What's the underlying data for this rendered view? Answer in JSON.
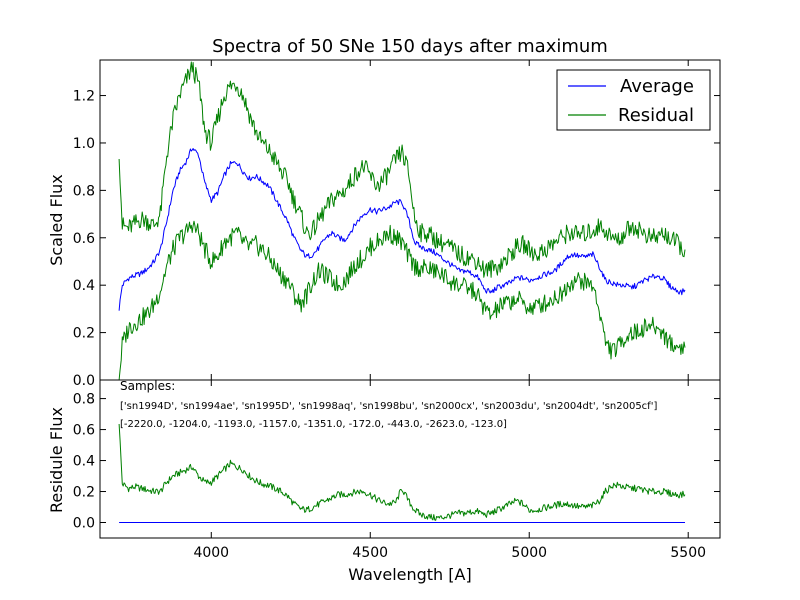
{
  "chart_data": [
    {
      "type": "line",
      "title": "Spectra of 50 SNe 150 days after maximum",
      "xlabel": "",
      "ylabel": "Scaled Flux",
      "xlim": [
        3650,
        5600
      ],
      "ylim": [
        0.0,
        1.35
      ],
      "yticks": [
        "0.0",
        "0.2",
        "0.4",
        "0.6",
        "0.8",
        "1.0",
        "1.2"
      ],
      "legend": {
        "placement": "top-right",
        "entries": [
          "Average",
          "Residual"
        ]
      },
      "series": [
        {
          "name": "Average",
          "color": "#0000ff",
          "x": [
            3710,
            3720,
            3740,
            3760,
            3780,
            3800,
            3820,
            3840,
            3860,
            3880,
            3900,
            3920,
            3940,
            3960,
            3980,
            4000,
            4020,
            4040,
            4060,
            4080,
            4100,
            4120,
            4140,
            4160,
            4180,
            4200,
            4220,
            4240,
            4260,
            4280,
            4300,
            4320,
            4340,
            4360,
            4380,
            4400,
            4420,
            4440,
            4460,
            4480,
            4500,
            4520,
            4540,
            4560,
            4580,
            4600,
            4620,
            4640,
            4660,
            4680,
            4700,
            4720,
            4740,
            4760,
            4780,
            4800,
            4820,
            4840,
            4860,
            4880,
            4900,
            4920,
            4940,
            4960,
            4980,
            5000,
            5020,
            5040,
            5060,
            5080,
            5100,
            5120,
            5140,
            5160,
            5180,
            5200,
            5220,
            5240,
            5260,
            5280,
            5300,
            5320,
            5340,
            5360,
            5380,
            5400,
            5420,
            5440,
            5460,
            5480,
            5490
          ],
          "values": [
            0.3,
            0.4,
            0.43,
            0.44,
            0.45,
            0.47,
            0.5,
            0.55,
            0.67,
            0.8,
            0.88,
            0.92,
            0.98,
            0.95,
            0.83,
            0.76,
            0.79,
            0.86,
            0.91,
            0.92,
            0.88,
            0.85,
            0.86,
            0.84,
            0.82,
            0.77,
            0.72,
            0.67,
            0.6,
            0.55,
            0.52,
            0.53,
            0.56,
            0.6,
            0.62,
            0.6,
            0.59,
            0.63,
            0.67,
            0.7,
            0.72,
            0.71,
            0.72,
            0.73,
            0.75,
            0.75,
            0.68,
            0.58,
            0.56,
            0.55,
            0.54,
            0.52,
            0.5,
            0.48,
            0.46,
            0.46,
            0.45,
            0.43,
            0.38,
            0.37,
            0.39,
            0.4,
            0.41,
            0.43,
            0.43,
            0.42,
            0.43,
            0.44,
            0.45,
            0.46,
            0.49,
            0.52,
            0.53,
            0.52,
            0.52,
            0.53,
            0.48,
            0.42,
            0.41,
            0.4,
            0.4,
            0.39,
            0.4,
            0.42,
            0.43,
            0.44,
            0.43,
            0.4,
            0.38,
            0.37,
            0.38
          ]
        },
        {
          "name": "Residual",
          "color": "#008000",
          "x": [
            3710,
            3720,
            3740,
            3760,
            3780,
            3800,
            3820,
            3840,
            3860,
            3880,
            3900,
            3920,
            3940,
            3960,
            3980,
            4000,
            4020,
            4040,
            4060,
            4080,
            4100,
            4120,
            4140,
            4160,
            4180,
            4200,
            4220,
            4240,
            4260,
            4280,
            4300,
            4320,
            4340,
            4360,
            4380,
            4400,
            4420,
            4440,
            4460,
            4480,
            4500,
            4520,
            4540,
            4560,
            4580,
            4600,
            4620,
            4640,
            4660,
            4680,
            4700,
            4720,
            4740,
            4760,
            4780,
            4800,
            4820,
            4840,
            4860,
            4880,
            4900,
            4920,
            4940,
            4960,
            4980,
            5000,
            5020,
            5040,
            5060,
            5080,
            5100,
            5120,
            5140,
            5160,
            5180,
            5200,
            5220,
            5240,
            5260,
            5280,
            5300,
            5320,
            5340,
            5360,
            5380,
            5400,
            5420,
            5440,
            5460,
            5480,
            5490
          ],
          "values": [
            0.97,
            0.65,
            0.64,
            0.66,
            0.68,
            0.67,
            0.65,
            0.7,
            0.95,
            1.1,
            1.2,
            1.26,
            1.32,
            1.25,
            1.05,
            1.0,
            1.1,
            1.2,
            1.24,
            1.25,
            1.2,
            1.12,
            1.05,
            1.0,
            0.97,
            0.93,
            0.88,
            0.84,
            0.76,
            0.7,
            0.62,
            0.63,
            0.68,
            0.72,
            0.76,
            0.78,
            0.8,
            0.84,
            0.88,
            0.9,
            0.86,
            0.82,
            0.84,
            0.88,
            0.93,
            0.96,
            0.88,
            0.68,
            0.62,
            0.62,
            0.6,
            0.58,
            0.57,
            0.55,
            0.53,
            0.52,
            0.51,
            0.5,
            0.46,
            0.47,
            0.48,
            0.5,
            0.53,
            0.56,
            0.57,
            0.55,
            0.53,
            0.54,
            0.56,
            0.58,
            0.6,
            0.62,
            0.62,
            0.61,
            0.62,
            0.63,
            0.65,
            0.63,
            0.6,
            0.59,
            0.62,
            0.65,
            0.64,
            0.62,
            0.6,
            0.6,
            0.62,
            0.6,
            0.58,
            0.56,
            0.54
          ]
        },
        {
          "name": "",
          "color": "#008000",
          "x": [
            3710,
            3720,
            3740,
            3760,
            3780,
            3800,
            3820,
            3840,
            3860,
            3880,
            3900,
            3920,
            3940,
            3960,
            3980,
            4000,
            4020,
            4040,
            4060,
            4080,
            4100,
            4120,
            4140,
            4160,
            4180,
            4200,
            4220,
            4240,
            4260,
            4280,
            4300,
            4320,
            4340,
            4360,
            4380,
            4400,
            4420,
            4440,
            4460,
            4480,
            4500,
            4520,
            4540,
            4560,
            4580,
            4600,
            4620,
            4640,
            4660,
            4680,
            4700,
            4720,
            4740,
            4760,
            4780,
            4800,
            4820,
            4840,
            4860,
            4880,
            4900,
            4920,
            4940,
            4960,
            4980,
            5000,
            5020,
            5040,
            5060,
            5080,
            5100,
            5120,
            5140,
            5160,
            5180,
            5200,
            5220,
            5240,
            5260,
            5280,
            5300,
            5320,
            5340,
            5360,
            5380,
            5400,
            5420,
            5440,
            5460,
            5480,
            5490
          ],
          "values": [
            0.0,
            0.15,
            0.22,
            0.24,
            0.26,
            0.28,
            0.32,
            0.38,
            0.48,
            0.55,
            0.6,
            0.62,
            0.66,
            0.62,
            0.55,
            0.5,
            0.52,
            0.58,
            0.6,
            0.62,
            0.58,
            0.56,
            0.57,
            0.55,
            0.52,
            0.48,
            0.44,
            0.42,
            0.36,
            0.32,
            0.36,
            0.42,
            0.46,
            0.44,
            0.42,
            0.4,
            0.42,
            0.46,
            0.5,
            0.52,
            0.56,
            0.58,
            0.6,
            0.62,
            0.6,
            0.58,
            0.52,
            0.48,
            0.47,
            0.47,
            0.46,
            0.45,
            0.43,
            0.41,
            0.4,
            0.39,
            0.38,
            0.35,
            0.3,
            0.27,
            0.3,
            0.32,
            0.33,
            0.34,
            0.33,
            0.3,
            0.31,
            0.32,
            0.33,
            0.35,
            0.36,
            0.4,
            0.42,
            0.42,
            0.41,
            0.4,
            0.3,
            0.16,
            0.12,
            0.14,
            0.18,
            0.2,
            0.2,
            0.22,
            0.23,
            0.22,
            0.2,
            0.16,
            0.14,
            0.14,
            0.15
          ]
        }
      ]
    },
    {
      "type": "line",
      "title": "",
      "xlabel": "Wavelength [A]",
      "ylabel": "Residule Flux",
      "xlim": [
        3650,
        5600
      ],
      "ylim": [
        -0.1,
        0.92
      ],
      "xticks": [
        "4000",
        "4500",
        "5000",
        "5500"
      ],
      "yticks": [
        "0.0",
        "0.2",
        "0.4",
        "0.6",
        "0.8"
      ],
      "annotations": [
        "Samples:",
        "['sn1994D', 'sn1994ae', 'sn1995D', 'sn1998aq', 'sn1998bu', 'sn2000cx', 'sn2003du', 'sn2004dt', 'sn2005cf']",
        "[-2220.0, -1204.0, -1193.0, -1157.0, -1351.0, -172.0, -443.0, -2623.0, -123.0]"
      ],
      "series": [
        {
          "name": "",
          "color": "#008000",
          "x": [
            3710,
            3720,
            3740,
            3760,
            3780,
            3800,
            3820,
            3840,
            3860,
            3880,
            3900,
            3920,
            3940,
            3960,
            3980,
            4000,
            4020,
            4040,
            4060,
            4080,
            4100,
            4120,
            4140,
            4160,
            4180,
            4200,
            4220,
            4240,
            4260,
            4280,
            4300,
            4320,
            4340,
            4360,
            4380,
            4400,
            4420,
            4440,
            4460,
            4480,
            4500,
            4520,
            4540,
            4560,
            4580,
            4600,
            4620,
            4640,
            4660,
            4680,
            4700,
            4720,
            4740,
            4760,
            4780,
            4800,
            4820,
            4840,
            4860,
            4880,
            4900,
            4920,
            4940,
            4960,
            4980,
            5000,
            5020,
            5040,
            5060,
            5080,
            5100,
            5120,
            5140,
            5160,
            5180,
            5200,
            5220,
            5240,
            5260,
            5280,
            5300,
            5320,
            5340,
            5360,
            5380,
            5400,
            5420,
            5440,
            5460,
            5480,
            5490
          ],
          "values": [
            0.65,
            0.25,
            0.22,
            0.23,
            0.22,
            0.21,
            0.2,
            0.2,
            0.26,
            0.3,
            0.32,
            0.34,
            0.36,
            0.3,
            0.26,
            0.26,
            0.3,
            0.34,
            0.38,
            0.36,
            0.34,
            0.3,
            0.27,
            0.25,
            0.24,
            0.22,
            0.2,
            0.17,
            0.12,
            0.09,
            0.08,
            0.1,
            0.12,
            0.14,
            0.16,
            0.18,
            0.18,
            0.19,
            0.2,
            0.2,
            0.18,
            0.15,
            0.13,
            0.12,
            0.13,
            0.22,
            0.14,
            0.08,
            0.05,
            0.04,
            0.03,
            0.03,
            0.04,
            0.05,
            0.06,
            0.06,
            0.07,
            0.07,
            0.05,
            0.06,
            0.08,
            0.1,
            0.12,
            0.14,
            0.12,
            0.08,
            0.08,
            0.09,
            0.1,
            0.11,
            0.12,
            0.12,
            0.11,
            0.1,
            0.1,
            0.11,
            0.14,
            0.2,
            0.24,
            0.24,
            0.23,
            0.22,
            0.22,
            0.21,
            0.2,
            0.2,
            0.2,
            0.19,
            0.18,
            0.18,
            0.18
          ]
        },
        {
          "name": "",
          "color": "#0000ff",
          "x": [
            3710,
            5490
          ],
          "values": [
            0.0,
            0.0
          ]
        }
      ]
    }
  ]
}
